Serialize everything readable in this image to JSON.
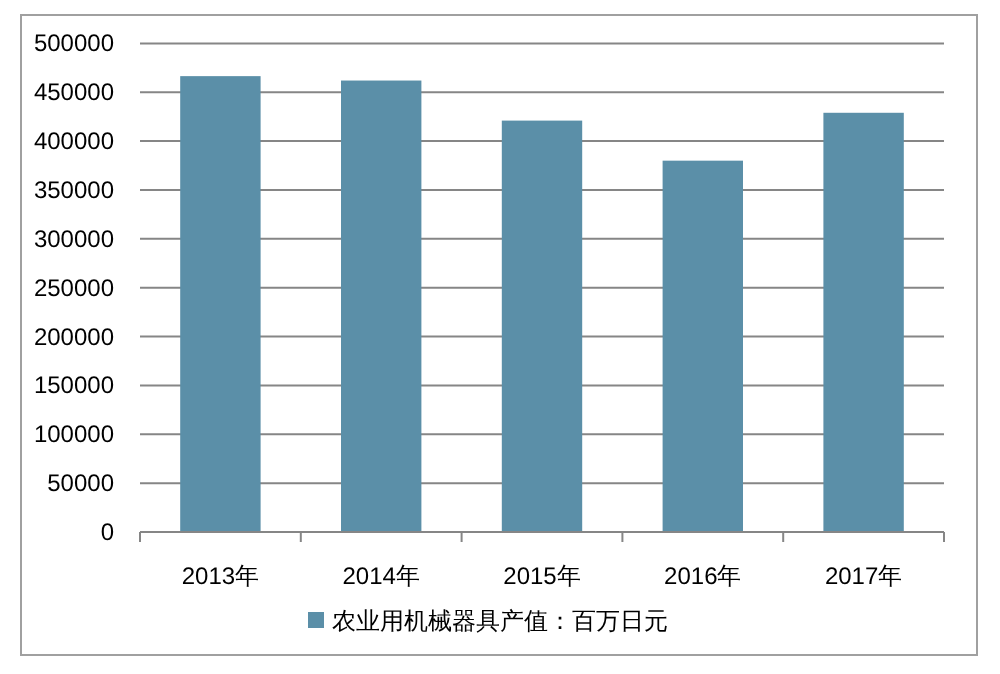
{
  "chart_data": {
    "type": "bar",
    "categories": [
      "2013年",
      "2014年",
      "2015年",
      "2016年",
      "2017年"
    ],
    "series": [
      {
        "name": "农业用机械器具产值：百万日元",
        "color": "#5b8fa8",
        "values": [
          466500,
          462000,
          421000,
          380000,
          429000
        ]
      }
    ],
    "ylim": [
      0,
      500000
    ],
    "yticks": [
      0,
      50000,
      100000,
      150000,
      200000,
      250000,
      300000,
      350000,
      400000,
      450000,
      500000
    ],
    "grid": "y",
    "legend": "bottom"
  }
}
